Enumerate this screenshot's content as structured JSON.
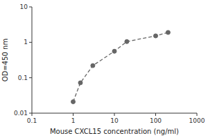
{
  "chart_data": {
    "type": "line",
    "x": [
      1,
      1.5,
      3,
      10,
      20,
      100,
      200
    ],
    "values": [
      0.021,
      0.072,
      0.22,
      0.56,
      1.05,
      1.52,
      1.9
    ],
    "xlabel": "Mouse CXCL15 concentration (ng/ml)",
    "ylabel": "OD=450 nm",
    "xlim": [
      0.1,
      1000
    ],
    "ylim": [
      0.01,
      10
    ],
    "xticks": [
      0.1,
      1,
      10,
      100,
      1000
    ],
    "yticks": [
      0.01,
      0.1,
      1,
      10
    ],
    "log": true,
    "color": "#666666",
    "marker": "circle",
    "line_style": "dashed"
  }
}
